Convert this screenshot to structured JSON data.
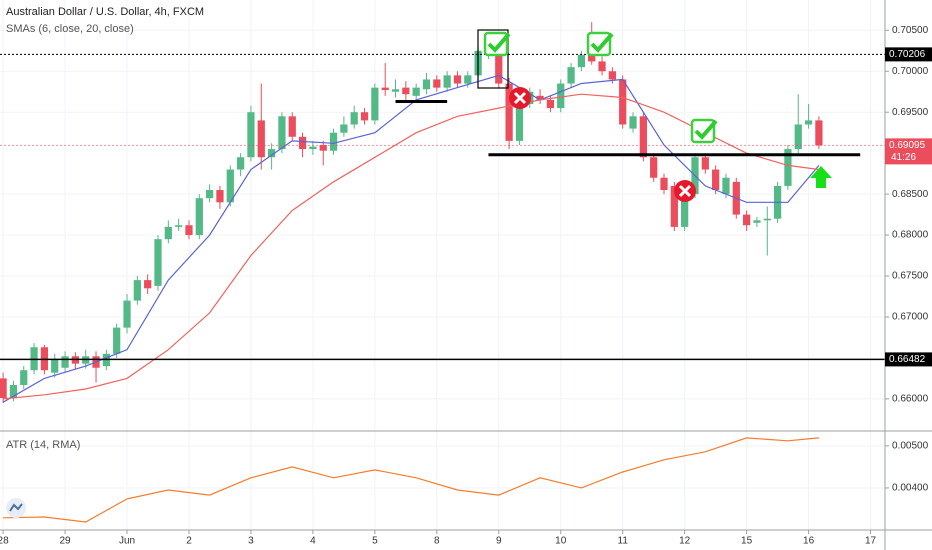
{
  "chart_data": [
    {
      "type": "candlestick",
      "title": "Australian Dollar / U.S. Dollar, 4h, FXCM",
      "subtitle": "SMAs (6, close, 20, close)",
      "up_color": "#53b987",
      "down_color": "#eb4d5c",
      "xlim": [
        -0.3,
        85.4
      ],
      "xticks": [
        {
          "value": 0,
          "label": "28"
        },
        {
          "value": 6,
          "label": "29"
        },
        {
          "value": 12,
          "label": "Jun"
        },
        {
          "value": 18,
          "label": "2"
        },
        {
          "value": 24,
          "label": "3"
        },
        {
          "value": 30,
          "label": "4"
        },
        {
          "value": 36,
          "label": "5"
        },
        {
          "value": 42,
          "label": "8"
        },
        {
          "value": 48,
          "label": "9"
        },
        {
          "value": 54,
          "label": "10"
        },
        {
          "value": 60,
          "label": "11"
        },
        {
          "value": 66,
          "label": "12"
        },
        {
          "value": 72,
          "label": "15"
        },
        {
          "value": 78,
          "label": "16"
        },
        {
          "value": 84,
          "label": "17"
        }
      ],
      "ylim": [
        0.6562,
        0.7087
      ],
      "yticks": [
        {
          "value": 0.705,
          "label": "0.70500"
        },
        {
          "value": 0.7,
          "label": "0.70000"
        },
        {
          "value": 0.695,
          "label": "0.69500"
        },
        {
          "value": 0.685,
          "label": "0.68500"
        },
        {
          "value": 0.68,
          "label": "0.68000"
        },
        {
          "value": 0.675,
          "label": "0.67500"
        },
        {
          "value": 0.67,
          "label": "0.67000"
        },
        {
          "value": 0.66,
          "label": "0.66000"
        }
      ],
      "grid": true,
      "open": [
        0.6625,
        0.6601,
        0.6617,
        0.6635,
        0.6663,
        0.6632,
        0.6638,
        0.6652,
        0.6643,
        0.6652,
        0.664,
        0.6655,
        0.6687,
        0.672,
        0.6745,
        0.6738,
        0.6795,
        0.681,
        0.6812,
        0.68,
        0.6845,
        0.6855,
        0.684,
        0.688,
        0.6895,
        0.694,
        0.6895,
        0.6905,
        0.6945,
        0.692,
        0.6905,
        0.691,
        0.6903,
        0.6925,
        0.6935,
        0.695,
        0.694,
        0.698,
        0.6975,
        0.698,
        0.697,
        0.6978,
        0.699,
        0.698,
        0.6995,
        0.6985,
        0.6995,
        0.702,
        0.7025,
        0.6985,
        0.6915,
        0.696,
        0.697,
        0.6965,
        0.6955,
        0.6985,
        0.7005,
        0.702,
        0.7012,
        0.7,
        0.699,
        0.693,
        0.6945,
        0.6895,
        0.687,
        0.686,
        0.681,
        0.685,
        0.6895,
        0.688,
        0.685,
        0.6865,
        0.6825,
        0.6815,
        0.6818,
        0.682,
        0.686,
        0.6905,
        0.6935,
        0.694
      ],
      "high": [
        0.6632,
        0.6622,
        0.664,
        0.6668,
        0.6666,
        0.6655,
        0.6658,
        0.6657,
        0.666,
        0.6658,
        0.666,
        0.6692,
        0.6728,
        0.675,
        0.6752,
        0.68,
        0.6818,
        0.682,
        0.6818,
        0.685,
        0.6862,
        0.686,
        0.6885,
        0.69,
        0.6958,
        0.6985,
        0.6912,
        0.695,
        0.695,
        0.6925,
        0.6915,
        0.6915,
        0.693,
        0.6945,
        0.6958,
        0.6955,
        0.6985,
        0.701,
        0.699,
        0.6988,
        0.6985,
        0.6998,
        0.6995,
        0.7,
        0.7,
        0.7,
        0.703,
        0.704,
        0.703,
        0.6992,
        0.6965,
        0.698,
        0.6978,
        0.697,
        0.699,
        0.701,
        0.7025,
        0.706,
        0.7018,
        0.7005,
        0.6995,
        0.695,
        0.695,
        0.69,
        0.6875,
        0.6865,
        0.6855,
        0.69,
        0.69,
        0.6885,
        0.6875,
        0.687,
        0.683,
        0.6822,
        0.6835,
        0.6865,
        0.691,
        0.6972,
        0.696,
        0.6945
      ],
      "low": [
        0.6595,
        0.6597,
        0.6612,
        0.663,
        0.663,
        0.6626,
        0.6632,
        0.6636,
        0.6637,
        0.662,
        0.6635,
        0.665,
        0.668,
        0.6715,
        0.6728,
        0.6732,
        0.679,
        0.6805,
        0.6795,
        0.6795,
        0.684,
        0.6832,
        0.6835,
        0.6872,
        0.689,
        0.688,
        0.688,
        0.69,
        0.6915,
        0.6895,
        0.6898,
        0.6885,
        0.6898,
        0.692,
        0.693,
        0.6935,
        0.6935,
        0.697,
        0.6968,
        0.6965,
        0.6962,
        0.6972,
        0.6975,
        0.6975,
        0.698,
        0.698,
        0.699,
        0.7015,
        0.698,
        0.6905,
        0.691,
        0.6955,
        0.696,
        0.695,
        0.695,
        0.698,
        0.7,
        0.7008,
        0.6995,
        0.6985,
        0.693,
        0.6925,
        0.689,
        0.6865,
        0.685,
        0.6805,
        0.6805,
        0.6845,
        0.6875,
        0.685,
        0.6845,
        0.682,
        0.6805,
        0.681,
        0.6775,
        0.6815,
        0.6855,
        0.69,
        0.693,
        0.6905
      ],
      "close": [
        0.6601,
        0.6617,
        0.6635,
        0.6663,
        0.6635,
        0.6648,
        0.6652,
        0.6643,
        0.6652,
        0.6638,
        0.6655,
        0.6687,
        0.672,
        0.6745,
        0.6735,
        0.6795,
        0.681,
        0.6812,
        0.68,
        0.6845,
        0.6855,
        0.684,
        0.688,
        0.6895,
        0.695,
        0.6895,
        0.6905,
        0.6945,
        0.692,
        0.6905,
        0.6908,
        0.6903,
        0.6925,
        0.6935,
        0.695,
        0.694,
        0.698,
        0.6977,
        0.6978,
        0.6972,
        0.698,
        0.699,
        0.698,
        0.6995,
        0.6985,
        0.6995,
        0.7025,
        0.703,
        0.6985,
        0.6915,
        0.696,
        0.6975,
        0.6965,
        0.6955,
        0.6985,
        0.7005,
        0.702,
        0.7012,
        0.7,
        0.699,
        0.6935,
        0.6945,
        0.6895,
        0.687,
        0.6855,
        0.681,
        0.685,
        0.6895,
        0.688,
        0.6855,
        0.687,
        0.6825,
        0.6812,
        0.6818,
        0.682,
        0.686,
        0.6905,
        0.6935,
        0.694,
        0.69095
      ],
      "series": [
        {
          "color": "#5a63d8",
          "x": [
            0,
            4,
            8,
            12,
            16,
            20,
            24,
            28,
            32,
            36,
            40,
            44,
            48,
            52,
            56,
            60,
            64,
            68,
            72,
            76,
            79
          ],
          "values": [
            0.6596,
            0.6625,
            0.664,
            0.666,
            0.6745,
            0.68,
            0.688,
            0.6915,
            0.6912,
            0.6925,
            0.6965,
            0.698,
            0.6995,
            0.6965,
            0.6985,
            0.699,
            0.691,
            0.686,
            0.684,
            0.684,
            0.6885
          ]
        },
        {
          "color": "#f0635f",
          "x": [
            0,
            4,
            8,
            12,
            16,
            20,
            24,
            28,
            32,
            36,
            40,
            44,
            48,
            52,
            56,
            60,
            64,
            68,
            72,
            76,
            79
          ],
          "values": [
            0.66,
            0.6605,
            0.6612,
            0.6625,
            0.666,
            0.6705,
            0.6775,
            0.683,
            0.6865,
            0.6895,
            0.6925,
            0.6945,
            0.6955,
            0.6965,
            0.6972,
            0.6968,
            0.695,
            0.6925,
            0.69,
            0.6885,
            0.688
          ]
        }
      ],
      "price_lines": [
        {
          "value": 0.70206,
          "color": "#000000",
          "style": "dotted"
        },
        {
          "value": 0.69095,
          "color": "#eb4d5c",
          "style": "dotted"
        },
        {
          "value": 0.66482,
          "color": "#000000",
          "style": "solid"
        }
      ],
      "countdown": "41:26",
      "trend_lines": [
        {
          "value": 0.6898,
          "x": [
            47,
            83
          ]
        },
        {
          "value": 0.6963,
          "x": [
            38,
            43
          ]
        }
      ]
    },
    {
      "type": "line",
      "title": "ATR (14, RMA)",
      "xlim": [
        -0.3,
        85.4
      ],
      "ylim": [
        0.003,
        0.00533
      ],
      "yticks": [
        {
          "value": 0.005,
          "label": "0.00500"
        },
        {
          "value": 0.004,
          "label": "0.00400"
        }
      ],
      "series": [
        {
          "color": "#f57c2c",
          "x": [
            0,
            4,
            8,
            12,
            16,
            20,
            24,
            28,
            32,
            36,
            40,
            44,
            48,
            52,
            56,
            60,
            64,
            68,
            72,
            76,
            79
          ],
          "values": [
            0.00329,
            0.00331,
            0.00319,
            0.00374,
            0.00395,
            0.00383,
            0.00424,
            0.0045,
            0.00424,
            0.00443,
            0.00424,
            0.00395,
            0.00383,
            0.00424,
            0.004,
            0.00438,
            0.00467,
            0.00486,
            0.00519,
            0.00512,
            0.00519
          ]
        }
      ]
    }
  ]
}
